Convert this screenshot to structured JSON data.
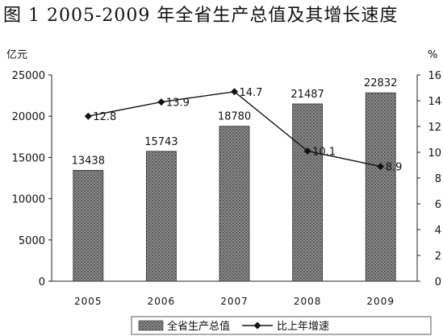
{
  "title": "图 1   2005-2009 年全省生产总值及其增长速度",
  "chart_data": {
    "type": "bar+line",
    "categories": [
      "2005",
      "2006",
      "2007",
      "2008",
      "2009"
    ],
    "series": [
      {
        "name": "全省生产总值",
        "type": "bar",
        "axis": "left",
        "values": [
          13438,
          15743,
          18780,
          21487,
          22832
        ],
        "labels": [
          "13438",
          "15743",
          "18780",
          "21487",
          "22832"
        ]
      },
      {
        "name": "比上年增速",
        "type": "line",
        "axis": "right",
        "values": [
          12.8,
          13.9,
          14.7,
          10.1,
          8.9
        ],
        "labels": [
          "12.8",
          "13.9",
          "14.7",
          "10.1",
          "8.9"
        ]
      }
    ],
    "y_left": {
      "unit": "亿元",
      "min": 0,
      "max": 25000,
      "ticks": [
        "0",
        "5000",
        "10000",
        "15000",
        "20000",
        "25000"
      ]
    },
    "y_right": {
      "unit": "%",
      "min": 0,
      "max": 16,
      "ticks": [
        "0",
        "2",
        "4",
        "6",
        "8",
        "10",
        "12",
        "14",
        "16"
      ]
    },
    "legend": {
      "placement": "bottom"
    },
    "grid": false,
    "colors": {
      "bar": "#7a7a7a",
      "line": "#111111",
      "axis": "#222222"
    }
  }
}
